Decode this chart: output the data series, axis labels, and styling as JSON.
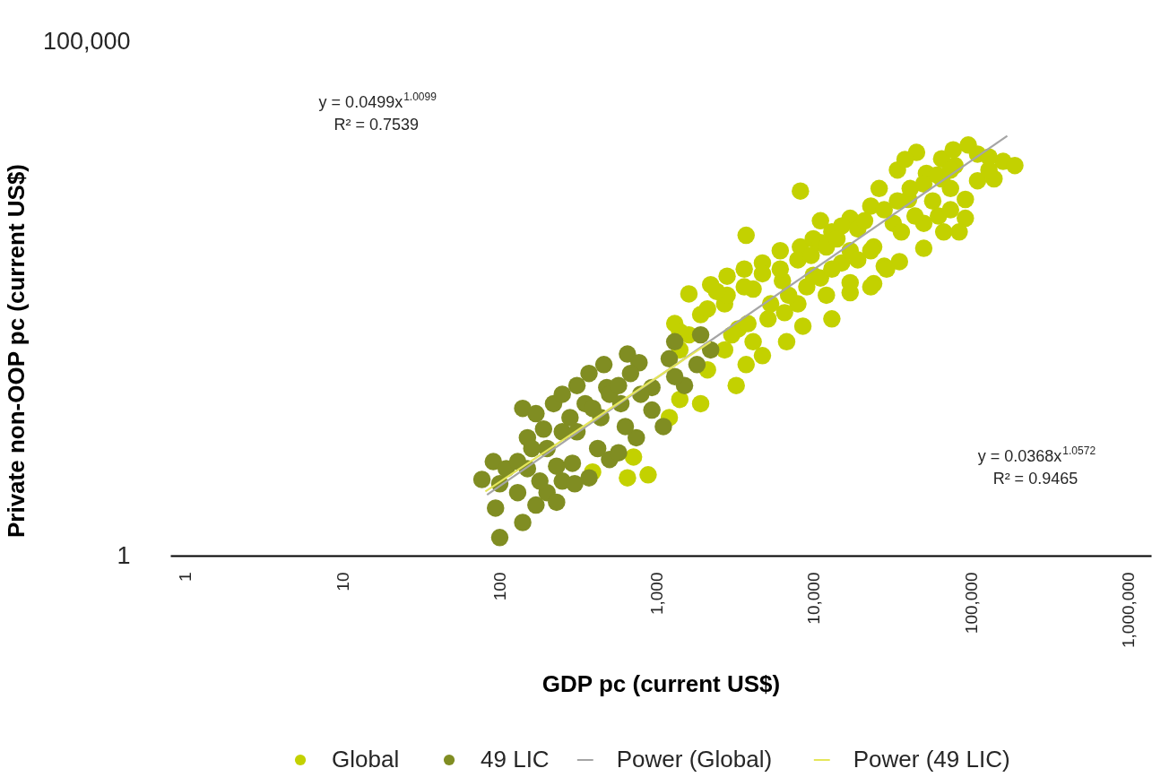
{
  "chart_data": {
    "type": "scatter",
    "xlabel": "GDP pc (current US$)",
    "ylabel": "Private non-OOP pc (current US$)",
    "log": "xy",
    "legend": "bottom",
    "xlim": [
      0.8,
      1400000
    ],
    "xticks": [
      1,
      10,
      100,
      {
        "value": 1000,
        "label": "1,000"
      },
      {
        "value": 10000,
        "label": "10,000"
      },
      {
        "value": 100000,
        "label": "100,000"
      },
      {
        "value": 1000000,
        "label": "1,000,000"
      }
    ],
    "ylim": [
      1,
      100000
    ],
    "yticks": [
      1,
      {
        "value": 100000,
        "label": "100,000"
      }
    ],
    "annotations": [
      "y = 0.0499x$^{1.0099}$\nR² = 0.7539",
      "y = 0.0368x$^{1.0572}$\nR² = 0.9465"
    ],
    "series": [
      {
        "name": "Global",
        "marker": "circle",
        "color": "#c3d100",
        "x": [
          650,
          880,
          710,
          390,
          1900,
          3200,
          3700,
          11000,
          1600,
          2200,
          2800,
          3600,
          4700,
          6100,
          8200,
          9900,
          13000,
          24000,
          28000,
          17000,
          13000,
          8500,
          6700,
          4700,
          3700,
          1300,
          1900,
          2700,
          4100,
          6300,
          9900,
          15000,
          3300,
          5100,
          7900,
          12000,
          2700,
          2100,
          4100,
          8200,
          45000,
          65000,
          77000,
          96000,
          110000,
          160000,
          190000,
          140000,
          110000,
          92000,
          92000,
          84000,
          67000,
          50000,
          35000,
          29000,
          23000,
          34000,
          26000,
          23000,
          17000,
          15000,
          11000,
          52000,
          74000,
          40000,
          32000,
          50000,
          62000,
          17000,
          24000,
          1400,
          1200,
          1400,
          1600,
          38000,
          65000,
          1400,
          2100,
          2800,
          3600,
          4700,
          6100,
          7900,
          9600,
          12000,
          14000,
          19000,
          21000,
          28000,
          34000,
          41000,
          50000,
          61000,
          79000,
          3000,
          3800,
          5300,
          6900,
          9000,
          11000,
          13000,
          19000,
          23000,
          36000,
          57000,
          74000,
          130000,
          44000,
          17000,
          6500,
          2400,
          130000,
          74000
        ],
        "values": [
          5.7,
          6.1,
          9.1,
          6.5,
          30,
          45,
          1300,
          1800,
          350,
          430,
          520,
          610,
          700,
          920,
          1000,
          1200,
          1400,
          440,
          650,
          360,
          200,
          170,
          120,
          88,
          72,
          180,
          220,
          280,
          390,
          470,
          530,
          700,
          160,
          200,
          280,
          340,
          100,
          64,
          120,
          3500,
          8300,
          7200,
          8800,
          9800,
          8000,
          6800,
          6200,
          4600,
          4400,
          2900,
          1900,
          1400,
          1400,
          970,
          720,
          610,
          410,
          5600,
          3700,
          2500,
          1900,
          1600,
          1100,
          5200,
          3700,
          2900,
          1700,
          1700,
          2000,
          920,
          1000,
          33,
          22,
          100,
          140,
          7100,
          4600,
          150,
          250,
          340,
          410,
          550,
          610,
          750,
          830,
          1000,
          1200,
          1500,
          1800,
          2300,
          2800,
          3700,
          4100,
          5000,
          6200,
          140,
          180,
          280,
          340,
          410,
          500,
          610,
          750,
          920,
          1400,
          2800,
          2300,
          5600,
          2000,
          450,
          230,
          370,
          7500,
          5600
        ]
      },
      {
        "name": "49 LIC",
        "marker": "circle",
        "color": "#808d22",
        "x": [
          77,
          91,
          110,
          94,
          100,
          140,
          140,
          170,
          150,
          150,
          220,
          250,
          310,
          370,
          460,
          650,
          770,
          200,
          250,
          370,
          500,
          740,
          1100,
          1500,
          1800,
          1900,
          2200,
          1200,
          1300,
          310,
          440,
          590,
          930,
          200,
          250,
          160,
          350,
          480,
          680,
          930,
          130,
          180,
          290,
          420,
          630,
          170,
          300,
          230,
          500,
          190,
          280,
          390,
          570,
          790,
          1300,
          130,
          230,
          100,
          570
        ],
        "values": [
          5.5,
          8.2,
          7,
          2.9,
          1.5,
          2.1,
          27,
          24,
          14,
          7,
          30,
          37,
          45,
          59,
          72,
          91,
          75,
          4.1,
          5.3,
          5.7,
          8.6,
          14,
          18,
          45,
          72,
          140,
          100,
          82,
          120,
          16,
          22,
          30,
          43,
          11,
          16,
          11,
          30,
          43,
          59,
          26,
          4.1,
          5.3,
          7.9,
          11,
          18,
          3.1,
          5,
          7.4,
          37,
          17,
          22,
          27,
          45,
          37,
          55,
          8.2,
          3.3,
          5,
          10
        ]
      },
      {
        "name": "Power (Global)",
        "type": "line",
        "color": "#a5a5a5",
        "x": [
          83,
          170000
        ],
        "values": [
          3.9,
          12000
        ]
      },
      {
        "name": "Power (49 LIC)",
        "type": "line",
        "color": "#e5e65a",
        "x": [
          81,
          2200
        ],
        "values": [
          4.2,
          120
        ]
      }
    ]
  }
}
